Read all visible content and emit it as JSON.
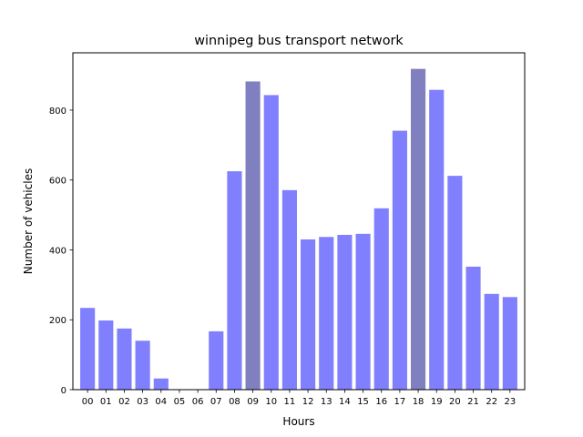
{
  "chart_data": {
    "type": "bar",
    "title": "winnipeg bus transport network",
    "xlabel": "Hours",
    "ylabel": "Number of vehicles",
    "categories": [
      "00",
      "01",
      "02",
      "03",
      "04",
      "05",
      "06",
      "07",
      "08",
      "09",
      "10",
      "11",
      "12",
      "13",
      "14",
      "15",
      "16",
      "17",
      "18",
      "19",
      "20",
      "21",
      "22",
      "23"
    ],
    "values": [
      234,
      198,
      175,
      140,
      32,
      0,
      0,
      167,
      625,
      882,
      843,
      571,
      430,
      437,
      443,
      446,
      519,
      741,
      918,
      858,
      612,
      352,
      274,
      265
    ],
    "highlighted": [
      "09",
      "18"
    ],
    "ylim": [
      0,
      964
    ],
    "yticks": [
      0,
      200,
      400,
      600,
      800
    ],
    "grid": false,
    "colors": {
      "bar": "#8080ff",
      "highlight": "#8080c0",
      "axis": "#000000"
    }
  }
}
